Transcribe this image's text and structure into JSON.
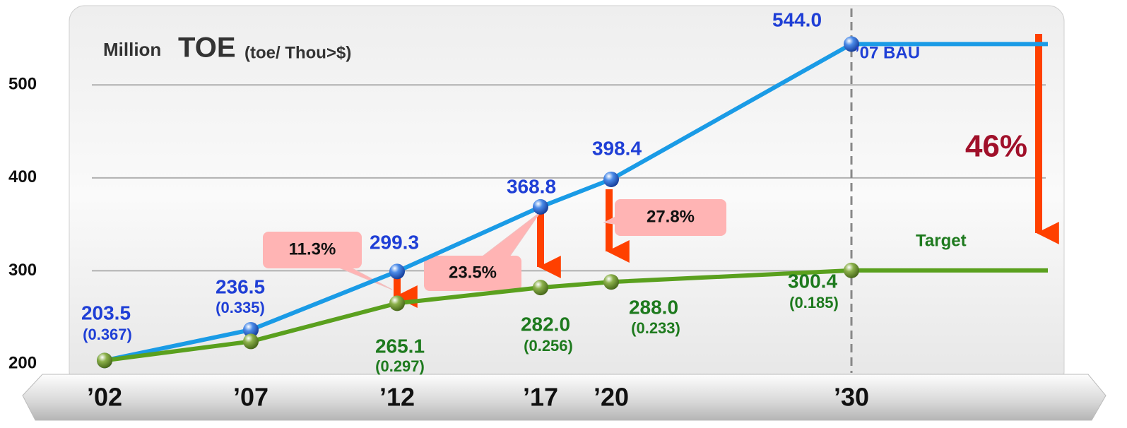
{
  "chart_data": {
    "type": "line",
    "unit_label": "Million",
    "title": "TOE",
    "subtitle": "(toe/ Thou>$)",
    "categories": [
      "’02",
      "’07",
      "’12",
      "’17",
      "’20",
      "’30"
    ],
    "ylim": [
      200,
      580
    ],
    "yticks": [
      200,
      300,
      400,
      500
    ],
    "grid": true,
    "series": [
      {
        "name": "’07 BAU",
        "color": "#1a9be6",
        "label_color": "#1f3fd6",
        "values": [
          203.5,
          236.5,
          299.3,
          368.8,
          398.4,
          544.0
        ],
        "value_labels": [
          "203.5",
          "236.5",
          "299.3",
          "368.8",
          "398.4",
          "544.0"
        ],
        "intensity_labels": [
          "(0.367)",
          "(0.335)",
          null,
          null,
          null,
          null
        ]
      },
      {
        "name": "Target",
        "color": "#5aa01e",
        "label_color": "#1e7a1e",
        "values": [
          203.5,
          224,
          265.1,
          282.0,
          288.0,
          300.4
        ],
        "value_labels": [
          null,
          null,
          "265.1",
          "282.0",
          "288.0",
          "300.4"
        ],
        "intensity_labels": [
          null,
          null,
          "(0.297)",
          "(0.256)",
          "(0.233)",
          "(0.185)"
        ]
      }
    ],
    "annotations": [
      "11.3%",
      "23.5%",
      "27.8%",
      "46%"
    ]
  }
}
